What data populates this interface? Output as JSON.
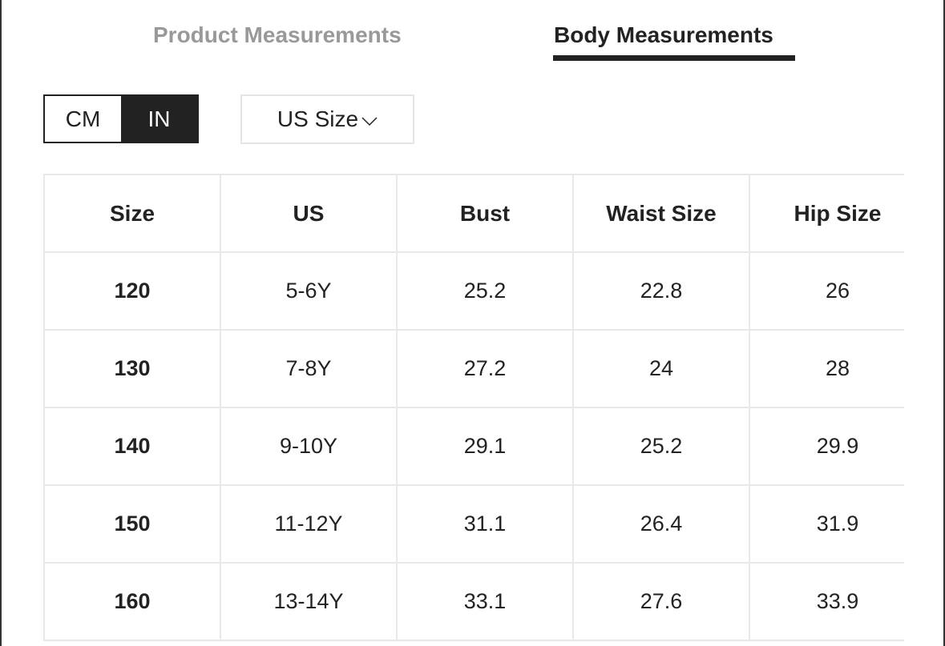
{
  "tabs": [
    "Product Measurements",
    "Body Measurements"
  ],
  "units": [
    "CM",
    "IN"
  ],
  "dropdown": "US Size",
  "table": {
    "header": [
      "Size",
      "US",
      "Bust",
      "Waist Size",
      "Hip Size"
    ],
    "rows": [
      [
        120,
        "5-6Y",
        25.2,
        22.8,
        26
      ],
      [
        130,
        "7-8Y",
        27.2,
        24,
        28
      ],
      [
        140,
        "9-10Y",
        29.1,
        25.2,
        29.9
      ],
      [
        150,
        "11-12Y",
        31.1,
        26.4,
        31.9
      ],
      [
        160,
        "13-14Y",
        33.1,
        27.6,
        33.9
      ]
    ]
  }
}
